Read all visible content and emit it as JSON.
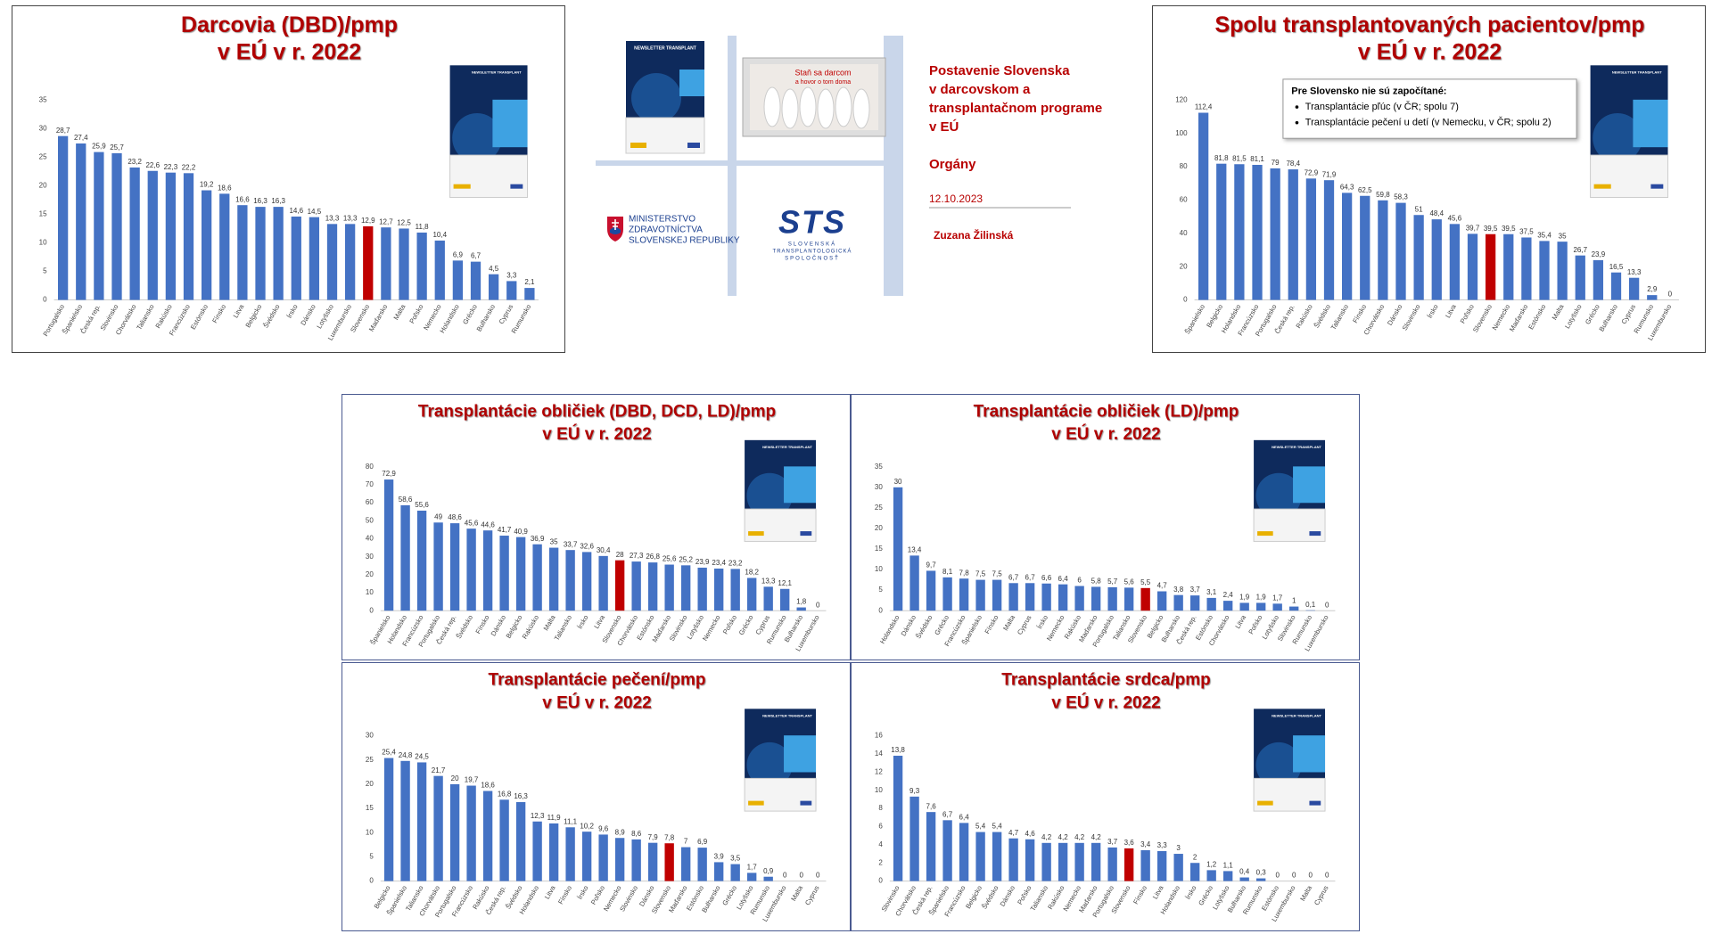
{
  "chart_data": [
    {
      "type": "bar",
      "title": "Darcovia (DBD)/pmp",
      "subtitle": "v EÚ v r. 2022",
      "categories": [
        "Portugalsko",
        "Španielsko",
        "Česká rep.",
        "Slovinsko",
        "Chorvátsko",
        "Taliansko",
        "Rakúsko",
        "Francúzsko",
        "Estónsko",
        "Fínsko",
        "Litva",
        "Belgicko",
        "Švédsko",
        "Írsko",
        "Dánsko",
        "Lotyšsko",
        "Luxembursko",
        "Slovensko",
        "Maďarsko",
        "Malta",
        "Poľsko",
        "Nemecko",
        "Holandsko",
        "Grécko",
        "Bulharsko",
        "Cyprus",
        "Rumunsko"
      ],
      "values": [
        28.7,
        27.4,
        25.9,
        25.7,
        23.2,
        22.6,
        22.3,
        22.2,
        19.2,
        18.6,
        16.6,
        16.3,
        16.3,
        14.6,
        14.5,
        13.3,
        13.3,
        12.9,
        12.7,
        12.5,
        11.8,
        10.4,
        6.9,
        6.7,
        4.5,
        3.3,
        2.1
      ],
      "value_labels": [
        "28,7",
        "27,4",
        "25,9",
        "25,7",
        "23,2",
        "22,6",
        "22,3",
        "22,2",
        "19,2",
        "18,6",
        "16,6",
        "16,3",
        "16,3",
        "14,6",
        "14,5",
        "13,3",
        "13,3",
        "12,9",
        "12,7",
        "12,5",
        "11,8",
        "10,4",
        "6,9",
        "6,7",
        "4,5",
        "3,3",
        "2,1"
      ],
      "color": "#4472c4",
      "highlight": {
        "index": 17,
        "color": "#c00000"
      },
      "ylim": [
        0,
        35
      ],
      "yticks": [
        0,
        5,
        10,
        15,
        20,
        25,
        30,
        35
      ],
      "grid": false
    },
    {
      "type": "bar",
      "title": "Spolu transplantovaných pacientov/pmp",
      "subtitle": "v EÚ v r. 2022",
      "categories": [
        "Španielsko",
        "Belgicko",
        "Holandsko",
        "Francúzsko",
        "Portugalsko",
        "Česká rep.",
        "Rakúsko",
        "Švédsko",
        "Taliansko",
        "Fínsko",
        "Chorvátsko",
        "Dánsko",
        "Slovinsko",
        "Írsko",
        "Litva",
        "Poľsko",
        "Slovensko",
        "Nemecko",
        "Maďarsko",
        "Estónsko",
        "Malta",
        "Lotyšsko",
        "Grécko",
        "Bulharsko",
        "Cyprus",
        "Rumunsko",
        "Luxembursko"
      ],
      "values": [
        112.4,
        81.8,
        81.5,
        81.1,
        79,
        78.4,
        72.9,
        71.9,
        64.3,
        62.5,
        59.8,
        58.3,
        51,
        48.4,
        45.6,
        39.7,
        39.5,
        39.5,
        37.5,
        35.4,
        35,
        26.7,
        23.9,
        16.5,
        13.3,
        2.9,
        0
      ],
      "value_labels": [
        "112,4",
        "81,8",
        "81,5",
        "81,1",
        "79",
        "78,4",
        "72,9",
        "71,9",
        "64,3",
        "62,5",
        "59,8",
        "58,3",
        "51",
        "48,4",
        "45,6",
        "39,7",
        "39,5",
        "39,5",
        "37,5",
        "35,4",
        "35",
        "26,7",
        "23,9",
        "16,5",
        "13,3",
        "2,9",
        "0"
      ],
      "color": "#4472c4",
      "highlight": {
        "index": 16,
        "color": "#c00000"
      },
      "ylim": [
        0,
        120
      ],
      "yticks": [
        0,
        20,
        40,
        60,
        80,
        100,
        120
      ],
      "grid": false,
      "note": {
        "title": "Pre Slovensko nie sú započítané:",
        "items": [
          "Transplantácie pľúc (v ČR; spolu 7)",
          "Transplantácie pečení u detí (v Nemecku, v ČR; spolu 2)"
        ]
      }
    },
    {
      "type": "bar",
      "title": "Transplantácie obličiek (DBD, DCD, LD)/pmp",
      "subtitle": "v EÚ v r. 2022",
      "categories": [
        "Španielsko",
        "Holandsko",
        "Francúzsko",
        "Portugalsko",
        "Česká rep.",
        "Švédsko",
        "Fínsko",
        "Dánsko",
        "Belgicko",
        "Rakúsko",
        "Malta",
        "Taliansko",
        "Írsko",
        "Litva",
        "Slovensko",
        "Chorvátsko",
        "Estónsko",
        "Maďarsko",
        "Slovinsko",
        "Lotyšsko",
        "Nemecko",
        "Poľsko",
        "Grécko",
        "Cyprus",
        "Rumunsko",
        "Bulharsko",
        "Luxembursko"
      ],
      "values": [
        72.9,
        58.6,
        55.6,
        49,
        48.6,
        45.6,
        44.6,
        41.7,
        40.9,
        36.9,
        35,
        33.7,
        32.6,
        30.4,
        28,
        27.3,
        26.8,
        25.6,
        25.2,
        23.9,
        23.4,
        23.2,
        18.2,
        13.3,
        12.1,
        1.8,
        0
      ],
      "value_labels": [
        "72,9",
        "58,6",
        "55,6",
        "49",
        "48,6",
        "45,6",
        "44,6",
        "41,7",
        "40,9",
        "36,9",
        "35",
        "33,7",
        "32,6",
        "30,4",
        "28",
        "27,3",
        "26,8",
        "25,6",
        "25,2",
        "23,9",
        "23,4",
        "23,2",
        "18,2",
        "13,3",
        "12,1",
        "1,8",
        "0"
      ],
      "color": "#4472c4",
      "highlight": {
        "index": 14,
        "color": "#c00000"
      },
      "ylim": [
        0,
        80
      ],
      "yticks": [
        0,
        10,
        20,
        30,
        40,
        50,
        60,
        70,
        80
      ],
      "grid": false
    },
    {
      "type": "bar",
      "title": "Transplantácie obličiek (LD)/pmp",
      "subtitle": "v EÚ v r. 2022",
      "categories": [
        "Holandsko",
        "Dánsko",
        "Švédsko",
        "Grécko",
        "Francúzsko",
        "Španielsko",
        "Fínsko",
        "Malta",
        "Cyprus",
        "Írsko",
        "Nemecko",
        "Rakúsko",
        "Maďarsko",
        "Portugalsko",
        "Taliansko",
        "Slovensko",
        "Belgicko",
        "Bulharsko",
        "Česká rep.",
        "Estónsko",
        "Chorvátsko",
        "Litva",
        "Poľsko",
        "Lotyšsko",
        "Slovinsko",
        "Rumunsko",
        "Luxembursko"
      ],
      "values": [
        30,
        13.4,
        9.7,
        8.1,
        7.8,
        7.5,
        7.5,
        6.7,
        6.7,
        6.6,
        6.4,
        6,
        5.8,
        5.7,
        5.6,
        5.5,
        4.7,
        3.8,
        3.7,
        3.1,
        2.4,
        1.9,
        1.9,
        1.7,
        1,
        0.1,
        0
      ],
      "value_labels": [
        "30",
        "13,4",
        "9,7",
        "8,1",
        "7,8",
        "7,5",
        "7,5",
        "6,7",
        "6,7",
        "6,6",
        "6,4",
        "6",
        "5,8",
        "5,7",
        "5,6",
        "5,5",
        "4,7",
        "3,8",
        "3,7",
        "3,1",
        "2,4",
        "1,9",
        "1,9",
        "1,7",
        "1",
        "0,1",
        "0"
      ],
      "color": "#4472c4",
      "highlight": {
        "index": 15,
        "color": "#c00000"
      },
      "ylim": [
        0,
        35
      ],
      "yticks": [
        0,
        5,
        10,
        15,
        20,
        25,
        30,
        35
      ],
      "grid": false
    },
    {
      "type": "bar",
      "title": "Transplantácie pečení/pmp",
      "subtitle": "v EÚ v r. 2022",
      "categories": [
        "Belgicko",
        "Španielsko",
        "Taliansko",
        "Chorvátsko",
        "Portugalsko",
        "Francúzsko",
        "Rakúsko",
        "Česká rep.",
        "Švédsko",
        "Holandsko",
        "Litva",
        "Fínsko",
        "Írsko",
        "Poľsko",
        "Nemecko",
        "Slovinsko",
        "Dánsko",
        "Slovensko",
        "Maďarsko",
        "Estónsko",
        "Bulharsko",
        "Grécko",
        "Lotyšsko",
        "Rumunsko",
        "Luxembursko",
        "Malta",
        "Cyprus"
      ],
      "values": [
        25.4,
        24.8,
        24.5,
        21.7,
        20,
        19.7,
        18.6,
        16.8,
        16.3,
        12.3,
        11.9,
        11.1,
        10.2,
        9.6,
        8.9,
        8.6,
        7.9,
        7.8,
        7,
        6.9,
        3.9,
        3.5,
        1.7,
        0.9,
        0,
        0,
        0
      ],
      "value_labels": [
        "25,4",
        "24,8",
        "24,5",
        "21,7",
        "20",
        "19,7",
        "18,6",
        "16,8",
        "16,3",
        "12,3",
        "11,9",
        "11,1",
        "10,2",
        "9,6",
        "8,9",
        "8,6",
        "7,9",
        "7,8",
        "7",
        "6,9",
        "3,9",
        "3,5",
        "1,7",
        "0,9",
        "0",
        "0",
        "0"
      ],
      "color": "#4472c4",
      "highlight": {
        "index": 17,
        "color": "#c00000"
      },
      "ylim": [
        0,
        30
      ],
      "yticks": [
        0,
        5,
        10,
        15,
        20,
        25,
        30
      ],
      "grid": false
    },
    {
      "type": "bar",
      "title": "Transplantácie srdca/pmp",
      "subtitle": "v EÚ v r. 2022",
      "categories": [
        "Slovinsko",
        "Chorvátsko",
        "Česká rep.",
        "Španielsko",
        "Francúzsko",
        "Belgicko",
        "Švédsko",
        "Dánsko",
        "Poľsko",
        "Taliansko",
        "Rakúsko",
        "Nemecko",
        "Maďarsko",
        "Portugalsko",
        "Slovensko",
        "Fínsko",
        "Litva",
        "Holandsko",
        "Írsko",
        "Grécko",
        "Lotyšsko",
        "Bulharsko",
        "Rumunsko",
        "Estónsko",
        "Luxembursko",
        "Malta",
        "Cyprus"
      ],
      "values": [
        13.8,
        9.3,
        7.6,
        6.7,
        6.4,
        5.4,
        5.4,
        4.7,
        4.6,
        4.2,
        4.2,
        4.2,
        4.2,
        3.7,
        3.6,
        3.4,
        3.3,
        3,
        2,
        1.2,
        1.1,
        0.4,
        0.3,
        0,
        0,
        0,
        0
      ],
      "value_labels": [
        "13,8",
        "9,3",
        "7,6",
        "6,7",
        "6,4",
        "5,4",
        "5,4",
        "4,7",
        "4,6",
        "4,2",
        "4,2",
        "4,2",
        "4,2",
        "3,7",
        "3,6",
        "3,4",
        "3,3",
        "3",
        "2",
        "1,2",
        "1,1",
        "0,4",
        "0,3",
        "0",
        "0",
        "0",
        "0"
      ],
      "color": "#4472c4",
      "highlight": {
        "index": 14,
        "color": "#c00000"
      },
      "ylim": [
        0,
        16
      ],
      "yticks": [
        0,
        2,
        4,
        6,
        8,
        10,
        12,
        14,
        16
      ],
      "grid": false
    }
  ],
  "thumbnail": {
    "title": "NEWSLETTER TRANSPLANT"
  },
  "center": {
    "heading": [
      "Postavenie Slovenska",
      "v darcovskom a",
      "transplantačnom programe",
      "v EÚ"
    ],
    "topic": "Orgány",
    "date": "12.10.2023",
    "author": "Zuzana Žilinská",
    "photo": [
      "Staň sa darcom",
      "a hovor o tom doma"
    ],
    "ministry": [
      "MINISTERSTVO",
      "ZDRAVOTNÍCTVA",
      "SLOVENSKEJ REPUBLIKY"
    ],
    "sts": {
      "logo": "STS",
      "lines": [
        "SLOVENSKÁ",
        "TRANSPLANTOLOGICKÁ",
        "SPOLOČNOSŤ"
      ]
    }
  }
}
